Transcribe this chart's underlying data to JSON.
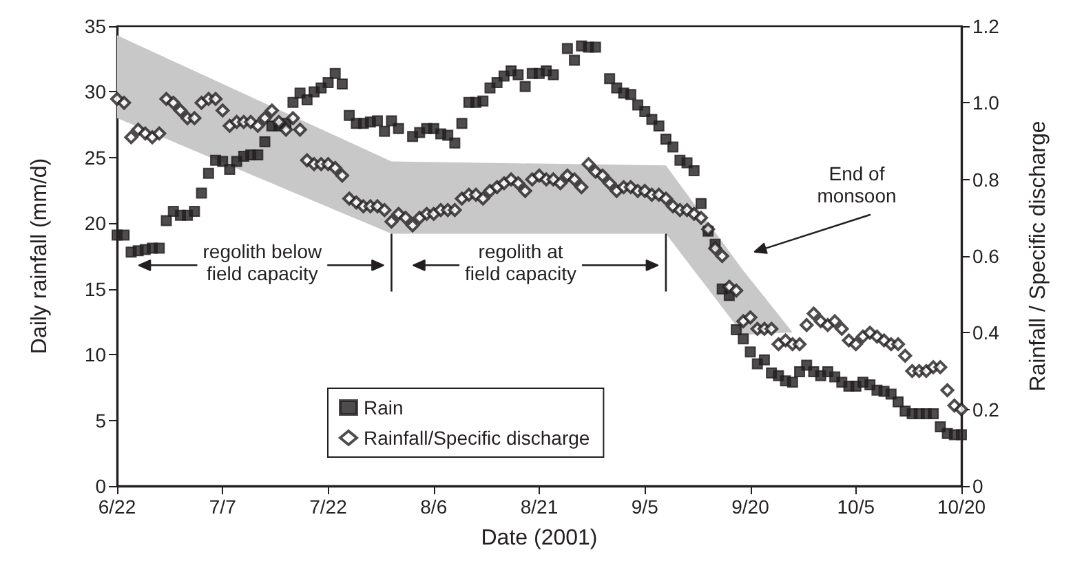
{
  "chart_data": {
    "type": "scatter",
    "xlabel": "Date (2001)",
    "ylabel": "Daily rainfall (mm/d)",
    "y2label": "Rainfall / Specific discharge",
    "xlim": [
      "2001-06-22",
      "2001-10-20"
    ],
    "xticks": [
      {
        "value": "2001-06-22",
        "label": "6/22"
      },
      {
        "value": "2001-07-07",
        "label": "7/7"
      },
      {
        "value": "2001-07-22",
        "label": "7/22"
      },
      {
        "value": "2001-08-06",
        "label": "8/6"
      },
      {
        "value": "2001-08-21",
        "label": "8/21"
      },
      {
        "value": "2001-09-05",
        "label": "9/5"
      },
      {
        "value": "2001-09-20",
        "label": "9/20"
      },
      {
        "value": "2001-10-05",
        "label": "10/5"
      },
      {
        "value": "2001-10-20",
        "label": "10/20"
      }
    ],
    "ylim": [
      0,
      35
    ],
    "yticks": [
      0,
      5,
      10,
      15,
      20,
      25,
      30,
      35
    ],
    "y2lim": [
      0,
      1.2
    ],
    "y2ticks": [
      0,
      0.2,
      0.4,
      0.6,
      0.8,
      {
        "value": 1,
        "label": "1.0"
      },
      1.2
    ],
    "grid": false,
    "legend": "bottom left",
    "series": [
      {
        "type": "area",
        "color": "#c8c8c8",
        "x": [
          "2001-06-22",
          "2001-07-31",
          "2001-09-08",
          "2001-09-19",
          "2001-09-26"
        ],
        "values": [
          null,
          null,
          null,
          null,
          null
        ],
        "lower": [
          28.0,
          19.2,
          19.2,
          11.5,
          11.7
        ],
        "upper": [
          34.3,
          24.7,
          24.4,
          16.4,
          11.7
        ]
      },
      {
        "name": "Rain",
        "color": "#231f20",
        "marker": "square",
        "x": [
          "2001-06-22",
          "2001-06-23",
          "2001-06-24",
          "2001-06-25",
          "2001-06-26",
          "2001-06-27",
          "2001-06-28",
          "2001-06-29",
          "2001-06-30",
          "2001-07-01",
          "2001-07-02",
          "2001-07-03",
          "2001-07-04",
          "2001-07-05",
          "2001-07-06",
          "2001-07-07",
          "2001-07-08",
          "2001-07-09",
          "2001-07-10",
          "2001-07-11",
          "2001-07-12",
          "2001-07-13",
          "2001-07-14",
          "2001-07-15",
          "2001-07-16",
          "2001-07-17",
          "2001-07-18",
          "2001-07-19",
          "2001-07-20",
          "2001-07-21",
          "2001-07-22",
          "2001-07-23",
          "2001-07-24",
          "2001-07-25",
          "2001-07-26",
          "2001-07-27",
          "2001-07-28",
          "2001-07-29",
          "2001-07-30",
          "2001-07-31",
          "2001-08-01",
          "2001-08-03",
          "2001-08-04",
          "2001-08-05",
          "2001-08-06",
          "2001-08-07",
          "2001-08-08",
          "2001-08-09",
          "2001-08-10",
          "2001-08-11",
          "2001-08-12",
          "2001-08-13",
          "2001-08-14",
          "2001-08-15",
          "2001-08-16",
          "2001-08-17",
          "2001-08-18",
          "2001-08-19",
          "2001-08-20",
          "2001-08-21",
          "2001-08-22",
          "2001-08-23",
          "2001-08-25",
          "2001-08-26",
          "2001-08-27",
          "2001-08-28",
          "2001-08-29",
          "2001-08-31",
          "2001-09-01",
          "2001-09-02",
          "2001-09-03",
          "2001-09-04",
          "2001-09-05",
          "2001-09-06",
          "2001-09-07",
          "2001-09-08",
          "2001-09-09",
          "2001-09-10",
          "2001-09-11",
          "2001-09-12",
          "2001-09-13",
          "2001-09-14",
          "2001-09-15",
          "2001-09-16",
          "2001-09-17",
          "2001-09-18",
          "2001-09-19",
          "2001-09-20",
          "2001-09-21",
          "2001-09-22",
          "2001-09-23",
          "2001-09-24",
          "2001-09-25",
          "2001-09-26",
          "2001-09-27",
          "2001-09-28",
          "2001-09-29",
          "2001-09-30",
          "2001-10-01",
          "2001-10-02",
          "2001-10-03",
          "2001-10-04",
          "2001-10-05",
          "2001-10-06",
          "2001-10-07",
          "2001-10-08",
          "2001-10-09",
          "2001-10-10",
          "2001-10-11",
          "2001-10-12",
          "2001-10-13",
          "2001-10-14",
          "2001-10-15",
          "2001-10-16",
          "2001-10-17",
          "2001-10-18",
          "2001-10-19",
          "2001-10-20"
        ],
        "values": [
          19.1,
          19.1,
          17.8,
          17.9,
          18.0,
          18.1,
          18.1,
          20.2,
          20.9,
          20.6,
          20.6,
          20.9,
          22.3,
          23.8,
          24.8,
          24.7,
          24.1,
          24.7,
          25.1,
          25.2,
          25.2,
          26.2,
          27.4,
          27.4,
          27.6,
          29.2,
          29.9,
          29.4,
          30.0,
          30.3,
          30.7,
          31.4,
          30.6,
          28.2,
          27.6,
          27.6,
          27.7,
          27.8,
          27.0,
          27.8,
          27.2,
          26.6,
          26.9,
          27.2,
          27.2,
          26.8,
          26.7,
          26.1,
          27.6,
          29.2,
          29.2,
          29.3,
          30.3,
          30.7,
          31.2,
          31.6,
          31.3,
          30.4,
          31.4,
          31.4,
          31.6,
          31.3,
          33.3,
          32.4,
          33.5,
          33.4,
          33.4,
          31.0,
          30.3,
          29.9,
          29.8,
          29.0,
          28.5,
          27.9,
          27.4,
          26.4,
          25.8,
          24.8,
          24.6,
          24.0,
          21.5,
          19.4,
          18.4,
          15.0,
          14.5,
          11.9,
          11.2,
          10.2,
          9.3,
          9.6,
          8.6,
          8.4,
          8.0,
          7.9,
          8.7,
          9.2,
          8.7,
          8.4,
          8.7,
          8.3,
          7.9,
          7.6,
          7.6,
          7.9,
          7.7,
          7.3,
          7.2,
          7.0,
          6.4,
          5.7,
          5.5,
          5.5,
          5.5,
          5.5,
          4.5,
          4.0,
          3.9,
          3.9
        ]
      },
      {
        "name": "Rainfall/Specific discharge",
        "color": "#231f20",
        "marker": "diamond",
        "axis": "y2",
        "x": [
          "2001-06-22",
          "2001-06-23",
          "2001-06-24",
          "2001-06-25",
          "2001-06-26",
          "2001-06-27",
          "2001-06-28",
          "2001-06-29",
          "2001-06-30",
          "2001-07-01",
          "2001-07-02",
          "2001-07-03",
          "2001-07-04",
          "2001-07-05",
          "2001-07-06",
          "2001-07-07",
          "2001-07-08",
          "2001-07-09",
          "2001-07-10",
          "2001-07-11",
          "2001-07-12",
          "2001-07-13",
          "2001-07-14",
          "2001-07-15",
          "2001-07-16",
          "2001-07-17",
          "2001-07-18",
          "2001-07-19",
          "2001-07-20",
          "2001-07-21",
          "2001-07-22",
          "2001-07-23",
          "2001-07-24",
          "2001-07-25",
          "2001-07-26",
          "2001-07-27",
          "2001-07-28",
          "2001-07-29",
          "2001-07-30",
          "2001-07-31",
          "2001-08-01",
          "2001-08-02",
          "2001-08-03",
          "2001-08-04",
          "2001-08-05",
          "2001-08-06",
          "2001-08-07",
          "2001-08-08",
          "2001-08-09",
          "2001-08-10",
          "2001-08-11",
          "2001-08-12",
          "2001-08-13",
          "2001-08-14",
          "2001-08-15",
          "2001-08-16",
          "2001-08-17",
          "2001-08-18",
          "2001-08-19",
          "2001-08-20",
          "2001-08-21",
          "2001-08-22",
          "2001-08-23",
          "2001-08-24",
          "2001-08-25",
          "2001-08-26",
          "2001-08-27",
          "2001-08-28",
          "2001-08-29",
          "2001-08-30",
          "2001-08-31",
          "2001-09-01",
          "2001-09-02",
          "2001-09-03",
          "2001-09-04",
          "2001-09-05",
          "2001-09-06",
          "2001-09-07",
          "2001-09-08",
          "2001-09-09",
          "2001-09-10",
          "2001-09-11",
          "2001-09-12",
          "2001-09-13",
          "2001-09-14",
          "2001-09-15",
          "2001-09-16",
          "2001-09-17",
          "2001-09-18",
          "2001-09-19",
          "2001-09-20",
          "2001-09-21",
          "2001-09-22",
          "2001-09-23",
          "2001-09-24",
          "2001-09-25",
          "2001-09-26",
          "2001-09-27",
          "2001-09-28",
          "2001-09-29",
          "2001-09-30",
          "2001-10-01",
          "2001-10-02",
          "2001-10-03",
          "2001-10-04",
          "2001-10-05",
          "2001-10-06",
          "2001-10-07",
          "2001-10-08",
          "2001-10-09",
          "2001-10-10",
          "2001-10-11",
          "2001-10-12",
          "2001-10-13",
          "2001-10-14",
          "2001-10-15",
          "2001-10-16",
          "2001-10-17",
          "2001-10-18",
          "2001-10-19",
          "2001-10-20"
        ],
        "values": [
          1.01,
          1.0,
          0.91,
          0.93,
          0.92,
          0.91,
          0.92,
          1.01,
          1.0,
          0.98,
          0.96,
          0.96,
          1.0,
          1.01,
          1.01,
          0.98,
          0.94,
          0.95,
          0.95,
          0.95,
          0.94,
          0.96,
          0.98,
          0.95,
          0.93,
          0.96,
          0.93,
          0.85,
          0.84,
          0.84,
          0.84,
          0.83,
          0.81,
          0.75,
          0.74,
          0.73,
          0.73,
          0.73,
          0.72,
          0.69,
          0.71,
          0.7,
          0.68,
          0.7,
          0.71,
          0.71,
          0.72,
          0.72,
          0.72,
          0.75,
          0.76,
          0.76,
          0.75,
          0.77,
          0.78,
          0.79,
          0.8,
          0.79,
          0.77,
          0.8,
          0.81,
          0.8,
          0.8,
          0.79,
          0.81,
          0.8,
          0.78,
          0.84,
          0.82,
          0.81,
          0.79,
          0.77,
          0.78,
          0.78,
          0.77,
          0.77,
          0.76,
          0.76,
          0.75,
          0.73,
          0.72,
          0.72,
          0.71,
          0.7,
          0.67,
          0.62,
          0.6,
          0.52,
          0.51,
          0.43,
          0.44,
          0.41,
          0.41,
          0.41,
          0.37,
          0.38,
          0.37,
          0.37,
          0.42,
          0.45,
          0.43,
          0.42,
          0.43,
          0.41,
          0.38,
          0.37,
          0.39,
          0.4,
          0.39,
          0.38,
          0.37,
          0.37,
          0.34,
          0.3,
          0.3,
          0.3,
          0.31,
          0.31,
          0.25,
          0.21,
          0.2
        ]
      }
    ],
    "annotations": [
      "regolith below\nfield capacity",
      "regolith at\nfield capacity",
      "End of\nmonsoon"
    ]
  }
}
